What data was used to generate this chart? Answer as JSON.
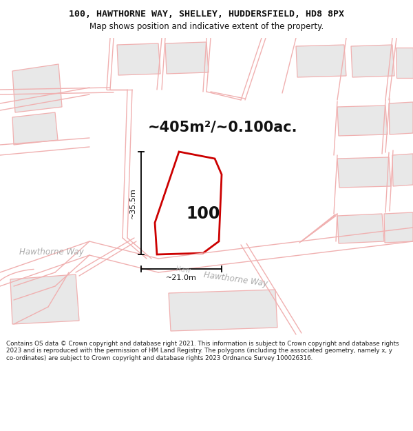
{
  "title_line1": "100, HAWTHORNE WAY, SHELLEY, HUDDERSFIELD, HD8 8PX",
  "title_line2": "Map shows position and indicative extent of the property.",
  "area_label": "~405m²/~0.100ac.",
  "property_number": "100",
  "dim_width": "~21.0m",
  "dim_height": "~35.5m",
  "footer_text": "Contains OS data © Crown copyright and database right 2021. This information is subject to Crown copyright and database rights 2023 and is reproduced with the permission of HM Land Registry. The polygons (including the associated geometry, namely x, y co-ordinates) are subject to Crown copyright and database rights 2023 Ordnance Survey 100026316.",
  "bg_color": "#f5f5f5",
  "map_bg": "#ffffff",
  "road_color": "#f0b0b0",
  "road_fill": "#ececec",
  "property_color": "#cc0000",
  "building_fill": "#e8e8e8",
  "road_label_color": "#aaaaaa",
  "annotation_color": "#111111",
  "title_fontsize": 9.5,
  "subtitle_fontsize": 8.5,
  "footer_fontsize": 6.3,
  "area_fontsize": 15,
  "dim_fontsize": 8,
  "number_fontsize": 17
}
